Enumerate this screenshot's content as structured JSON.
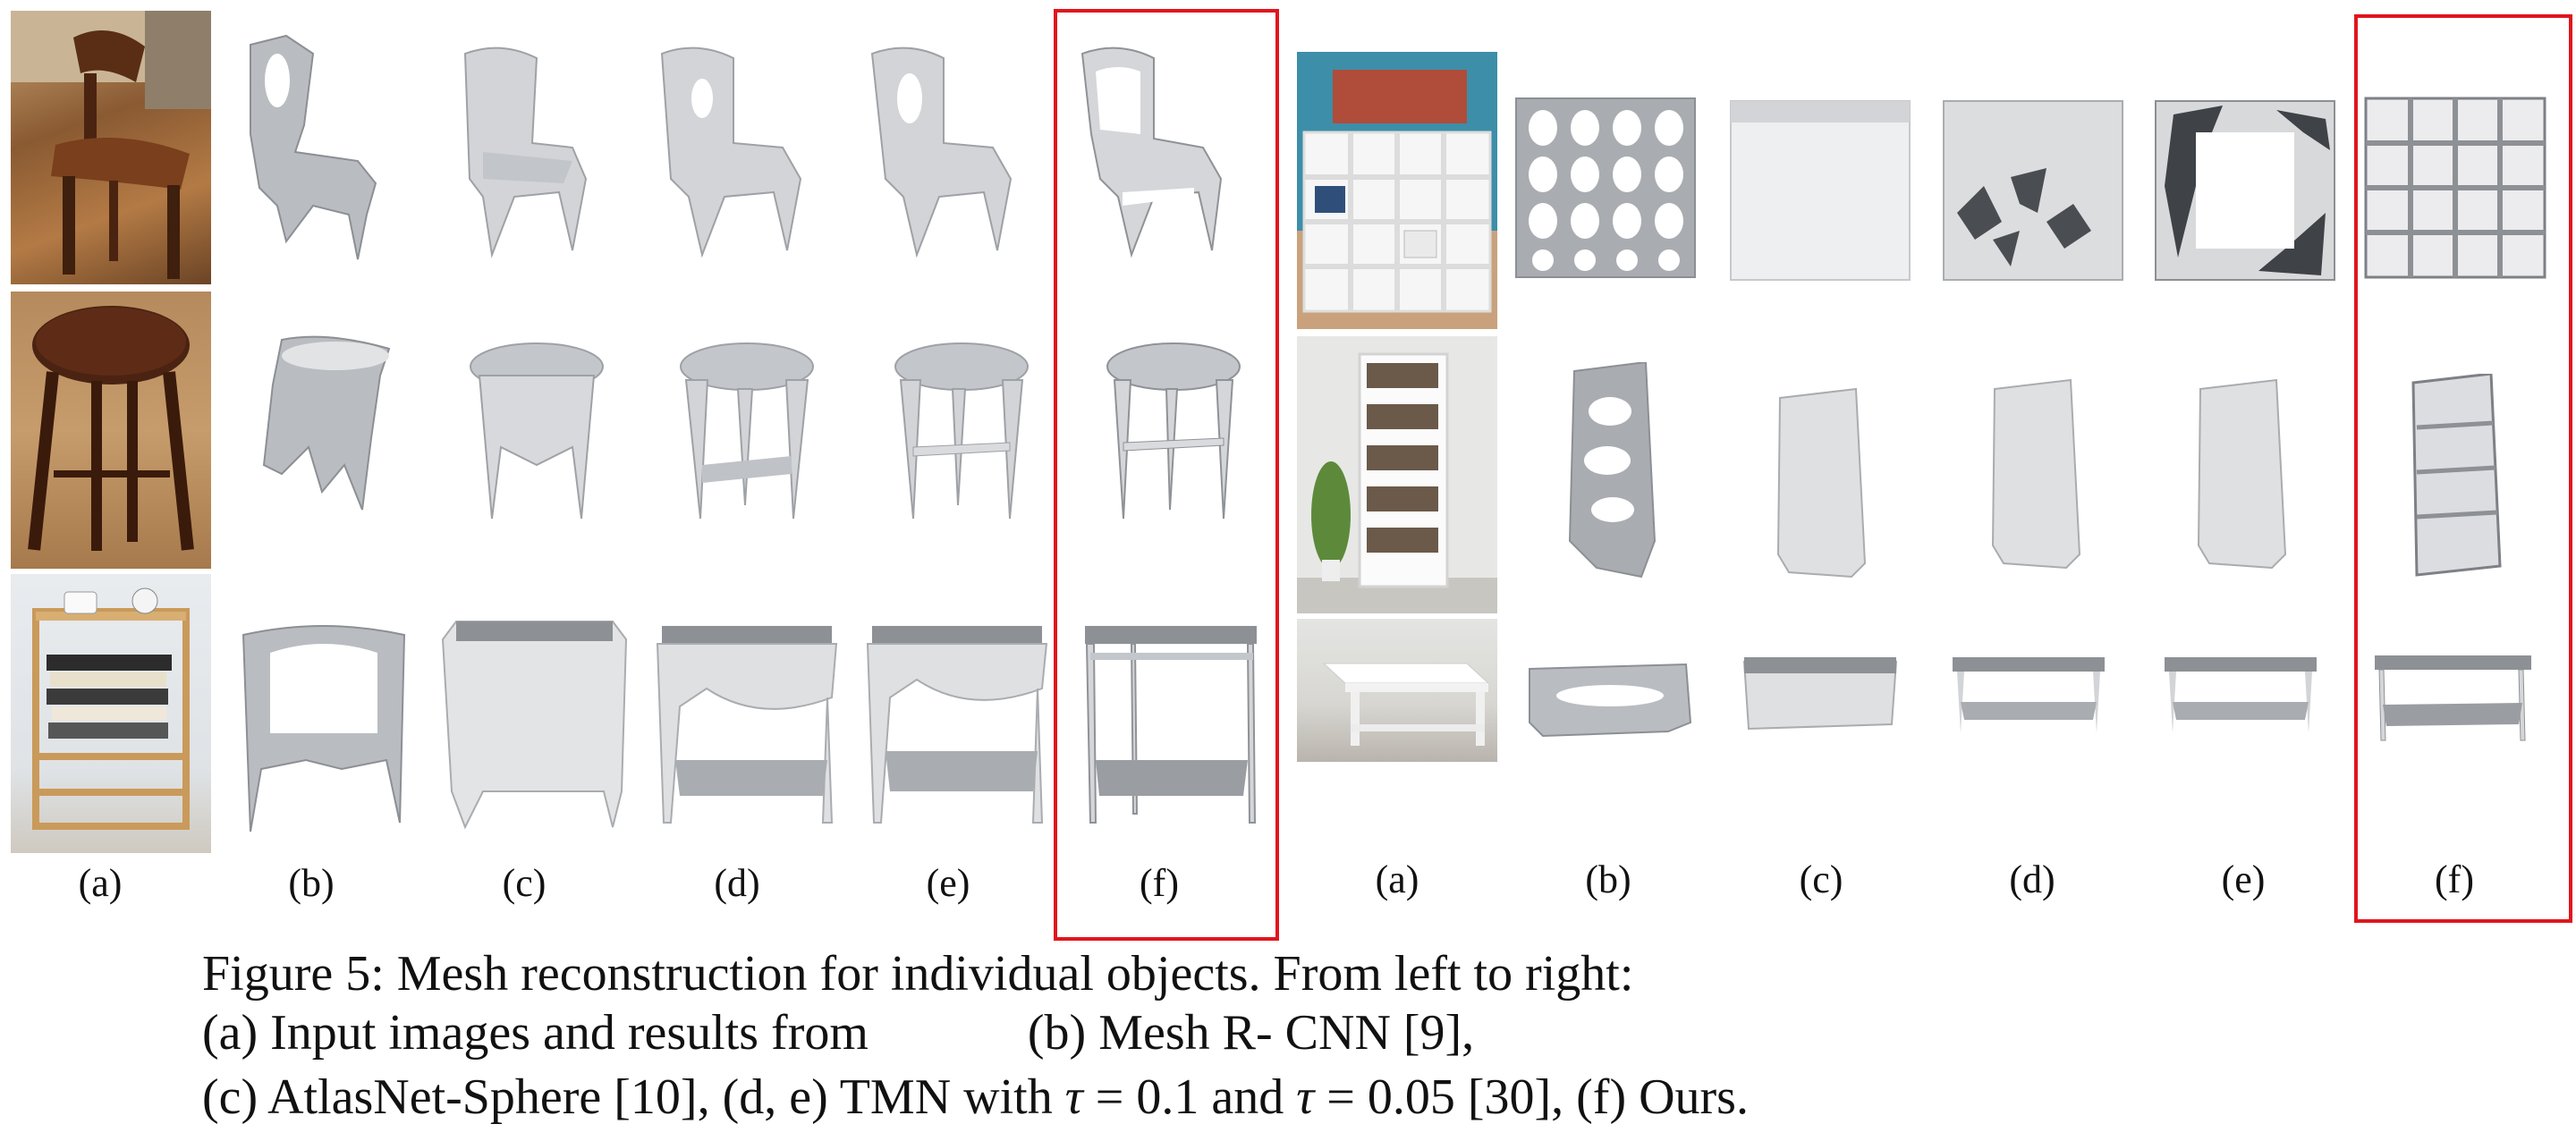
{
  "figure": {
    "column_labels_left": [
      "(a)",
      "(b)",
      "(c)",
      "(d)",
      "(e)",
      "(f)"
    ],
    "column_labels_right": [
      "(a)",
      "(b)",
      "(c)",
      "(d)",
      "(e)",
      "(f)"
    ],
    "caption_line1": "Figure 5: Mesh reconstruction for individual objects. From left to right:",
    "caption_line2a": "(a) Input images and results from",
    "caption_line2b": "(b) Mesh R- CNN [9],",
    "caption_line3a": "(c) AtlasNet-Sphere [10],",
    "caption_line3b": "(d, e) TMN with",
    "caption_tau": "τ",
    "caption_eq1": " = 0.1 and ",
    "caption_eq2": " = 0.05 [30],",
    "caption_line3c": "(f) Ours.",
    "highlight_color": "#e0161e"
  }
}
